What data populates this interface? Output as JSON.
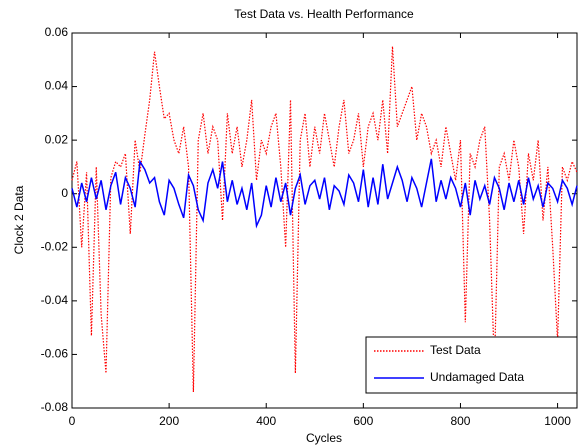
{
  "chart_data": {
    "type": "line",
    "title": "Test Data vs. Health Performance",
    "x_label": "Cycles",
    "y_label": "Clock 2 Data",
    "x": [
      0,
      10,
      20,
      30,
      40,
      50,
      60,
      70,
      80,
      90,
      100,
      110,
      120,
      130,
      140,
      150,
      160,
      170,
      180,
      190,
      200,
      210,
      220,
      230,
      240,
      250,
      260,
      270,
      280,
      290,
      300,
      310,
      320,
      330,
      340,
      350,
      360,
      370,
      380,
      390,
      400,
      410,
      420,
      430,
      440,
      450,
      460,
      470,
      480,
      490,
      500,
      510,
      520,
      530,
      540,
      550,
      560,
      570,
      580,
      590,
      600,
      610,
      620,
      630,
      640,
      650,
      660,
      670,
      680,
      690,
      700,
      710,
      720,
      730,
      740,
      750,
      760,
      770,
      780,
      790,
      800,
      810,
      820,
      830,
      840,
      850,
      860,
      870,
      880,
      890,
      900,
      910,
      920,
      930,
      940,
      950,
      960,
      970,
      980,
      990,
      1000,
      1010,
      1020,
      1030,
      1040
    ],
    "series": [
      {
        "name": "Test Data",
        "color": "#ff0000",
        "linestyle": "dotted",
        "values": [
          0.005,
          0.012,
          -0.02,
          0.008,
          -0.053,
          0.01,
          -0.045,
          -0.067,
          0.006,
          0.012,
          0.01,
          0.015,
          -0.015,
          0.02,
          0.008,
          0.022,
          0.035,
          0.053,
          0.04,
          0.028,
          0.03,
          0.02,
          0.015,
          0.025,
          0.01,
          -0.074,
          0.02,
          0.03,
          0.015,
          0.025,
          0.02,
          -0.01,
          0.03,
          0.015,
          0.025,
          0.01,
          0.02,
          0.035,
          0.005,
          0.02,
          0.015,
          0.025,
          0.03,
          0.01,
          -0.02,
          0.035,
          -0.067,
          0.02,
          0.03,
          0.01,
          0.025,
          0.015,
          0.03,
          0.02,
          0.01,
          0.025,
          0.035,
          0.015,
          0.02,
          0.03,
          0.01,
          0.025,
          0.03,
          0.02,
          0.035,
          0.015,
          0.055,
          0.025,
          0.03,
          0.035,
          0.04,
          0.02,
          0.03,
          0.025,
          0.015,
          0.02,
          0.01,
          0.025,
          0.015,
          0.005,
          0.02,
          -0.048,
          0.015,
          0.01,
          0.02,
          0.025,
          -0.01,
          -0.065,
          0.01,
          0.015,
          0.005,
          0.02,
          0.01,
          -0.015,
          0.015,
          0.005,
          0.02,
          -0.01,
          0.01,
          -0.02,
          -0.055,
          0.01,
          0.005,
          0.012,
          0.008
        ]
      },
      {
        "name": "Undamaged Data",
        "color": "#0000ff",
        "linestyle": "solid",
        "values": [
          0.002,
          -0.005,
          0.004,
          -0.003,
          0.006,
          -0.002,
          0.005,
          -0.006,
          0.003,
          0.008,
          -0.004,
          0.006,
          0.002,
          -0.005,
          0.012,
          0.009,
          0.004,
          0.006,
          -0.003,
          -0.008,
          0.005,
          0.002,
          -0.004,
          -0.009,
          0.007,
          0.003,
          -0.006,
          -0.01,
          0.004,
          0.009,
          0.002,
          0.012,
          -0.003,
          0.005,
          -0.004,
          0.002,
          -0.006,
          0.004,
          -0.012,
          -0.008,
          0.003,
          -0.005,
          0.006,
          -0.003,
          0.004,
          -0.008,
          0.002,
          0.007,
          -0.004,
          0.003,
          0.005,
          -0.002,
          0.006,
          -0.006,
          0.003,
          0.001,
          -0.004,
          0.007,
          0.004,
          -0.003,
          0.009,
          -0.005,
          0.006,
          -0.004,
          0.011,
          -0.002,
          0.004,
          0.01,
          0.005,
          -0.003,
          0.006,
          0.002,
          -0.005,
          0.004,
          0.013,
          -0.003,
          0.005,
          -0.002,
          0.006,
          0.002,
          -0.005,
          0.004,
          -0.008,
          0.005,
          -0.002,
          0.003,
          -0.004,
          0.006,
          0.002,
          -0.006,
          0.004,
          -0.003,
          0.005,
          -0.004,
          0.006,
          -0.002,
          0.003,
          -0.005,
          0.004,
          0.002,
          -0.003,
          0.005,
          0.002,
          -0.004,
          0.003
        ]
      }
    ],
    "xlim": [
      0,
      1040
    ],
    "xticks": [
      0,
      200,
      400,
      600,
      800,
      1000
    ],
    "ylim": [
      -0.08,
      0.06
    ],
    "yticks": [
      -0.08,
      -0.06,
      -0.04,
      -0.02,
      0,
      0.02,
      0.04,
      0.06
    ],
    "legend": "lower right"
  }
}
